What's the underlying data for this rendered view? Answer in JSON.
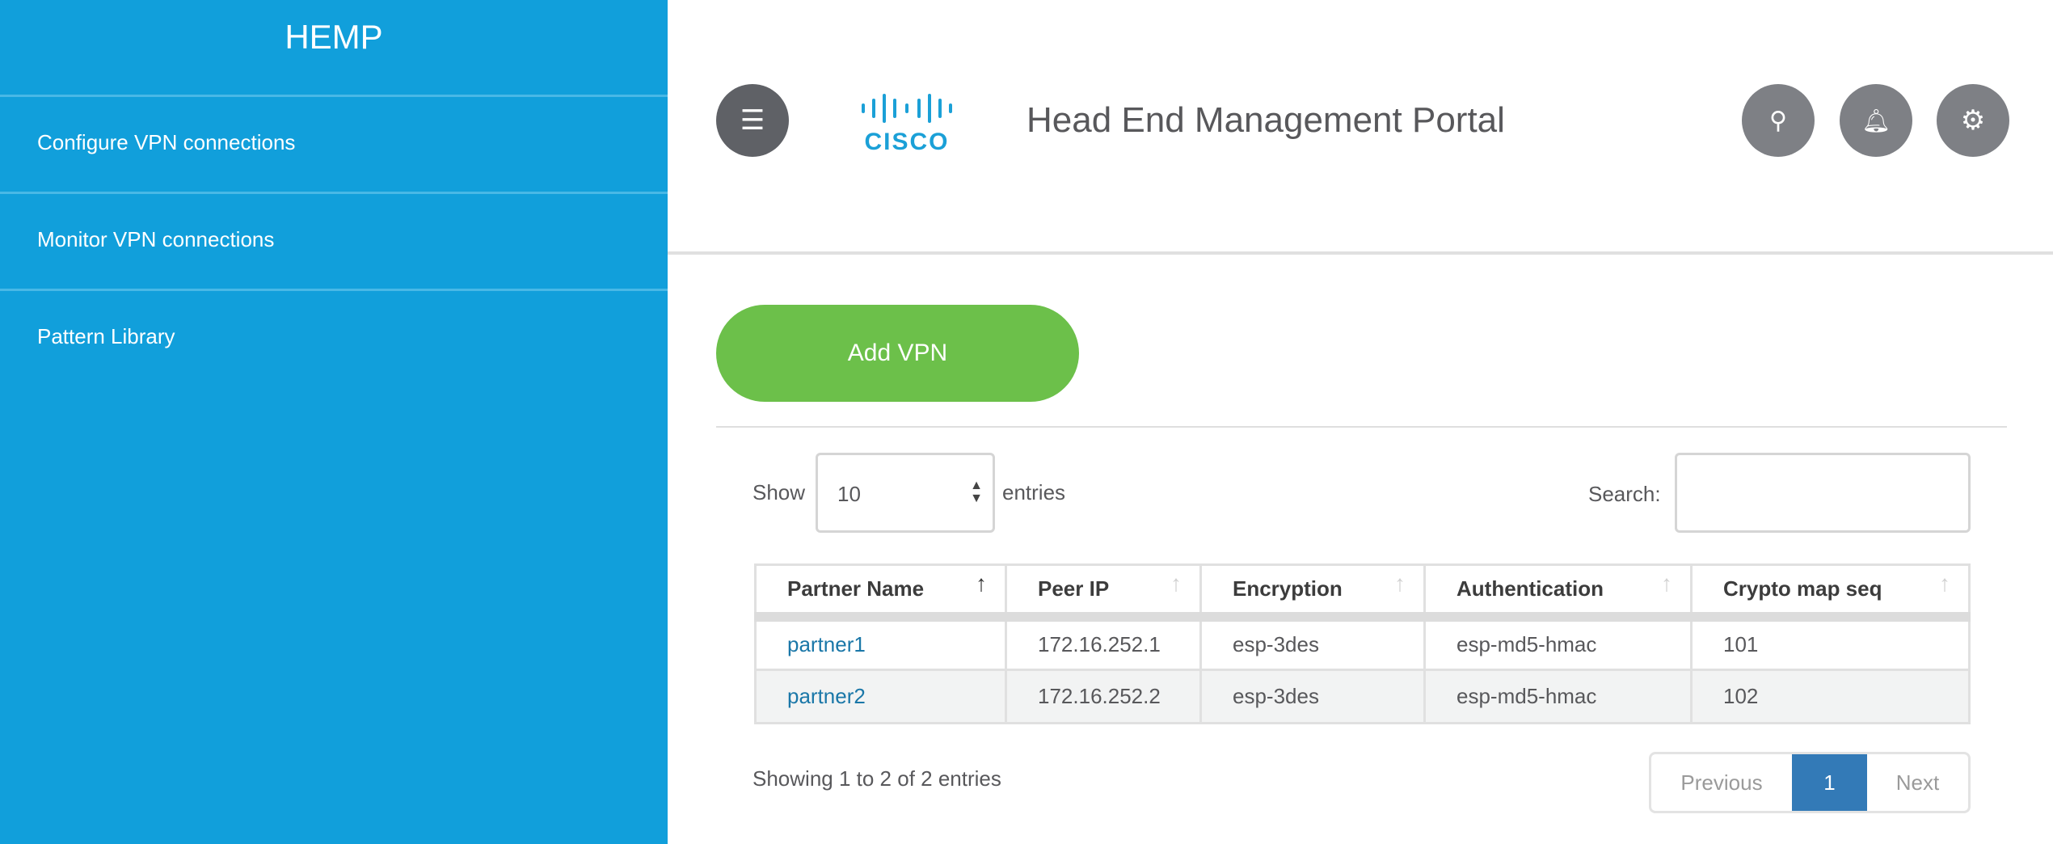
{
  "sidebar": {
    "brand": "HEMP",
    "items": [
      {
        "label": "Configure VPN connections"
      },
      {
        "label": "Monitor VPN connections"
      },
      {
        "label": "Pattern Library"
      }
    ]
  },
  "header": {
    "logo": "CISCO",
    "title": "Head End Management Portal",
    "icons": [
      "menu-icon",
      "search-icon",
      "bell-icon",
      "gear-icon"
    ]
  },
  "main": {
    "add_label": "Add VPN",
    "show_label": "Show",
    "entries_value": "10",
    "entries_label": "entries",
    "search_label": "Search:",
    "search_value": "",
    "columns": [
      "Partner Name",
      "Peer IP",
      "Encryption",
      "Authentication",
      "Crypto map seq"
    ],
    "rows": [
      [
        "partner1",
        "172.16.252.1",
        "esp-3des",
        "esp-md5-hmac",
        "101"
      ],
      [
        "partner2",
        "172.16.252.2",
        "esp-3des",
        "esp-md5-hmac",
        "102"
      ]
    ],
    "info": "Showing 1 to 2 of 2 entries",
    "pagination": {
      "previous": "Previous",
      "current": "1",
      "next": "Next"
    }
  },
  "colors": {
    "sidebar": "#119fdb",
    "add": "#6cc04a",
    "active_page": "#337ab7",
    "link": "#1a77a8"
  }
}
